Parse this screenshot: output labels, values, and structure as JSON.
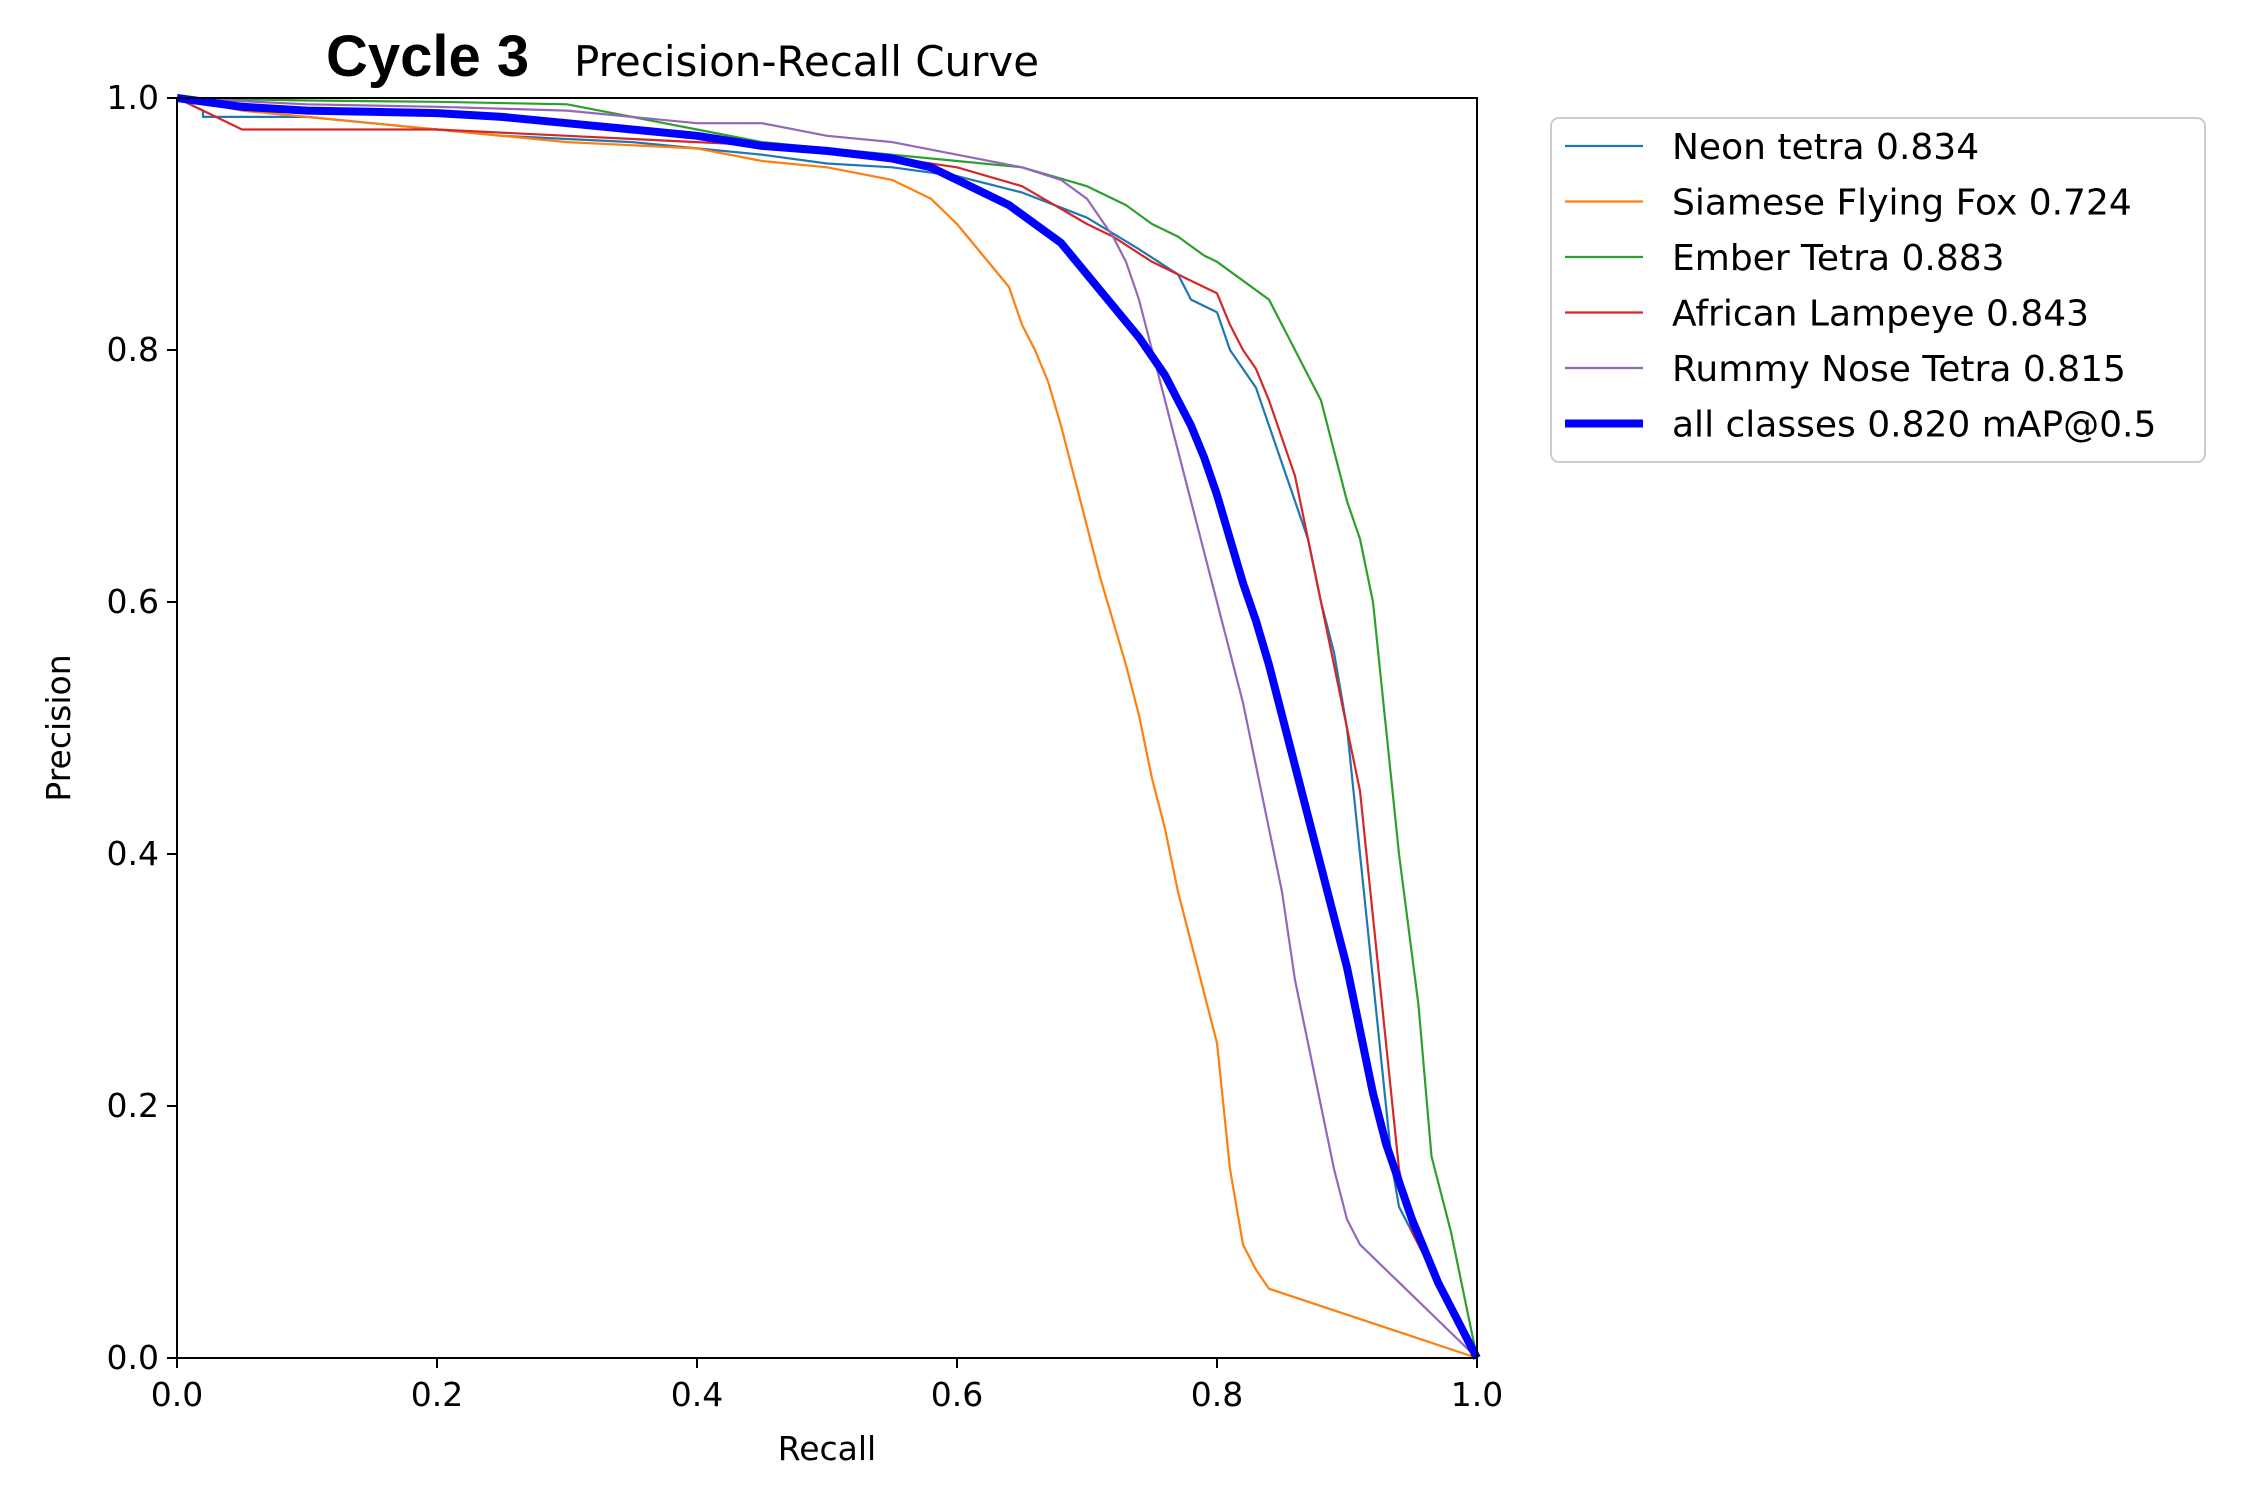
{
  "chart_data": {
    "type": "line",
    "title": "Cycle 3",
    "subtitle": "Precision-Recall Curve",
    "xlabel": "Recall",
    "ylabel": "Precision",
    "xlim": [
      0,
      1
    ],
    "ylim": [
      0,
      1
    ],
    "x_ticks": [
      "0.0",
      "0.2",
      "0.4",
      "0.6",
      "0.8",
      "1.0"
    ],
    "y_ticks": [
      "0.0",
      "0.2",
      "0.4",
      "0.6",
      "0.8",
      "1.0"
    ],
    "grid": false,
    "legend_position": "outside-right-top",
    "series": [
      {
        "name": "Neon tetra 0.834",
        "color": "#1f77b4",
        "bold": false,
        "points": [
          [
            0,
            1.0
          ],
          [
            0.02,
            0.99
          ],
          [
            0.02,
            0.985
          ],
          [
            0.1,
            0.985
          ],
          [
            0.2,
            0.975
          ],
          [
            0.25,
            0.97
          ],
          [
            0.35,
            0.965
          ],
          [
            0.4,
            0.96
          ],
          [
            0.45,
            0.955
          ],
          [
            0.5,
            0.948
          ],
          [
            0.55,
            0.945
          ],
          [
            0.6,
            0.938
          ],
          [
            0.65,
            0.925
          ],
          [
            0.7,
            0.905
          ],
          [
            0.74,
            0.88
          ],
          [
            0.77,
            0.86
          ],
          [
            0.78,
            0.84
          ],
          [
            0.8,
            0.83
          ],
          [
            0.81,
            0.8
          ],
          [
            0.83,
            0.77
          ],
          [
            0.84,
            0.74
          ],
          [
            0.85,
            0.71
          ],
          [
            0.86,
            0.68
          ],
          [
            0.87,
            0.65
          ],
          [
            0.88,
            0.6
          ],
          [
            0.89,
            0.56
          ],
          [
            0.9,
            0.5
          ],
          [
            0.905,
            0.45
          ],
          [
            0.91,
            0.4
          ],
          [
            0.915,
            0.35
          ],
          [
            0.92,
            0.3
          ],
          [
            0.925,
            0.25
          ],
          [
            0.93,
            0.2
          ],
          [
            0.935,
            0.15
          ],
          [
            0.94,
            0.12
          ],
          [
            0.95,
            0.1
          ],
          [
            0.96,
            0.08
          ],
          [
            0.97,
            0.06
          ],
          [
            1.0,
            0.0
          ]
        ]
      },
      {
        "name": "Siamese Flying Fox 0.724",
        "color": "#ff7f0e",
        "bold": false,
        "points": [
          [
            0,
            1.0
          ],
          [
            0.05,
            0.99
          ],
          [
            0.1,
            0.985
          ],
          [
            0.2,
            0.975
          ],
          [
            0.3,
            0.965
          ],
          [
            0.4,
            0.96
          ],
          [
            0.45,
            0.95
          ],
          [
            0.5,
            0.945
          ],
          [
            0.55,
            0.935
          ],
          [
            0.58,
            0.92
          ],
          [
            0.6,
            0.9
          ],
          [
            0.62,
            0.875
          ],
          [
            0.64,
            0.85
          ],
          [
            0.65,
            0.82
          ],
          [
            0.66,
            0.8
          ],
          [
            0.67,
            0.775
          ],
          [
            0.68,
            0.74
          ],
          [
            0.69,
            0.7
          ],
          [
            0.7,
            0.66
          ],
          [
            0.71,
            0.62
          ],
          [
            0.72,
            0.585
          ],
          [
            0.73,
            0.55
          ],
          [
            0.74,
            0.51
          ],
          [
            0.75,
            0.46
          ],
          [
            0.76,
            0.42
          ],
          [
            0.77,
            0.37
          ],
          [
            0.78,
            0.33
          ],
          [
            0.79,
            0.29
          ],
          [
            0.8,
            0.25
          ],
          [
            0.805,
            0.2
          ],
          [
            0.81,
            0.15
          ],
          [
            0.815,
            0.12
          ],
          [
            0.82,
            0.09
          ],
          [
            0.83,
            0.07
          ],
          [
            0.84,
            0.055
          ],
          [
            1.0,
            0.0
          ]
        ]
      },
      {
        "name": "Ember Tetra 0.883",
        "color": "#2ca02c",
        "bold": false,
        "points": [
          [
            0,
            1.0
          ],
          [
            0.1,
            0.998
          ],
          [
            0.2,
            0.997
          ],
          [
            0.3,
            0.995
          ],
          [
            0.4,
            0.975
          ],
          [
            0.45,
            0.965
          ],
          [
            0.5,
            0.96
          ],
          [
            0.55,
            0.955
          ],
          [
            0.6,
            0.95
          ],
          [
            0.65,
            0.945
          ],
          [
            0.7,
            0.93
          ],
          [
            0.73,
            0.915
          ],
          [
            0.75,
            0.9
          ],
          [
            0.77,
            0.89
          ],
          [
            0.79,
            0.875
          ],
          [
            0.8,
            0.87
          ],
          [
            0.82,
            0.855
          ],
          [
            0.84,
            0.84
          ],
          [
            0.85,
            0.82
          ],
          [
            0.86,
            0.8
          ],
          [
            0.87,
            0.78
          ],
          [
            0.88,
            0.76
          ],
          [
            0.89,
            0.72
          ],
          [
            0.9,
            0.68
          ],
          [
            0.91,
            0.65
          ],
          [
            0.92,
            0.6
          ],
          [
            0.925,
            0.55
          ],
          [
            0.93,
            0.5
          ],
          [
            0.935,
            0.45
          ],
          [
            0.94,
            0.4
          ],
          [
            0.945,
            0.36
          ],
          [
            0.95,
            0.32
          ],
          [
            0.955,
            0.28
          ],
          [
            0.96,
            0.22
          ],
          [
            0.965,
            0.16
          ],
          [
            0.98,
            0.1
          ],
          [
            1.0,
            0.0
          ]
        ]
      },
      {
        "name": "African Lampeye 0.843",
        "color": "#d62728",
        "bold": false,
        "points": [
          [
            0,
            1.0
          ],
          [
            0.05,
            0.975
          ],
          [
            0.1,
            0.975
          ],
          [
            0.2,
            0.975
          ],
          [
            0.3,
            0.97
          ],
          [
            0.4,
            0.965
          ],
          [
            0.5,
            0.96
          ],
          [
            0.6,
            0.945
          ],
          [
            0.65,
            0.93
          ],
          [
            0.7,
            0.9
          ],
          [
            0.72,
            0.89
          ],
          [
            0.75,
            0.87
          ],
          [
            0.78,
            0.855
          ],
          [
            0.8,
            0.845
          ],
          [
            0.81,
            0.82
          ],
          [
            0.82,
            0.8
          ],
          [
            0.83,
            0.785
          ],
          [
            0.84,
            0.76
          ],
          [
            0.85,
            0.73
          ],
          [
            0.86,
            0.7
          ],
          [
            0.87,
            0.65
          ],
          [
            0.88,
            0.6
          ],
          [
            0.89,
            0.55
          ],
          [
            0.9,
            0.5
          ],
          [
            0.91,
            0.45
          ],
          [
            0.915,
            0.4
          ],
          [
            0.92,
            0.35
          ],
          [
            0.925,
            0.3
          ],
          [
            0.93,
            0.25
          ],
          [
            0.935,
            0.2
          ],
          [
            0.94,
            0.15
          ],
          [
            0.95,
            0.1
          ],
          [
            0.97,
            0.06
          ],
          [
            1.0,
            0.0
          ]
        ]
      },
      {
        "name": "Rummy Nose Tetra 0.815",
        "color": "#9467bd",
        "bold": false,
        "points": [
          [
            0,
            1.0
          ],
          [
            0.1,
            0.995
          ],
          [
            0.2,
            0.993
          ],
          [
            0.3,
            0.99
          ],
          [
            0.35,
            0.985
          ],
          [
            0.4,
            0.98
          ],
          [
            0.45,
            0.98
          ],
          [
            0.5,
            0.97
          ],
          [
            0.55,
            0.965
          ],
          [
            0.6,
            0.955
          ],
          [
            0.65,
            0.945
          ],
          [
            0.68,
            0.935
          ],
          [
            0.7,
            0.92
          ],
          [
            0.71,
            0.905
          ],
          [
            0.72,
            0.89
          ],
          [
            0.73,
            0.87
          ],
          [
            0.74,
            0.84
          ],
          [
            0.75,
            0.8
          ],
          [
            0.76,
            0.76
          ],
          [
            0.77,
            0.72
          ],
          [
            0.78,
            0.68
          ],
          [
            0.79,
            0.64
          ],
          [
            0.8,
            0.6
          ],
          [
            0.81,
            0.56
          ],
          [
            0.82,
            0.52
          ],
          [
            0.83,
            0.47
          ],
          [
            0.84,
            0.42
          ],
          [
            0.85,
            0.37
          ],
          [
            0.86,
            0.3
          ],
          [
            0.87,
            0.25
          ],
          [
            0.88,
            0.2
          ],
          [
            0.89,
            0.15
          ],
          [
            0.9,
            0.11
          ],
          [
            0.91,
            0.09
          ],
          [
            1.0,
            0.0
          ]
        ]
      },
      {
        "name": "all classes 0.820 mAP@0.5",
        "color": "#0000ff",
        "bold": true,
        "points": [
          [
            0,
            1.0
          ],
          [
            0.05,
            0.993
          ],
          [
            0.1,
            0.99
          ],
          [
            0.2,
            0.988
          ],
          [
            0.25,
            0.985
          ],
          [
            0.3,
            0.98
          ],
          [
            0.35,
            0.975
          ],
          [
            0.4,
            0.97
          ],
          [
            0.45,
            0.962
          ],
          [
            0.5,
            0.958
          ],
          [
            0.55,
            0.952
          ],
          [
            0.58,
            0.945
          ],
          [
            0.6,
            0.935
          ],
          [
            0.62,
            0.925
          ],
          [
            0.64,
            0.915
          ],
          [
            0.66,
            0.9
          ],
          [
            0.68,
            0.885
          ],
          [
            0.7,
            0.86
          ],
          [
            0.72,
            0.835
          ],
          [
            0.74,
            0.81
          ],
          [
            0.76,
            0.78
          ],
          [
            0.77,
            0.76
          ],
          [
            0.78,
            0.74
          ],
          [
            0.79,
            0.715
          ],
          [
            0.8,
            0.685
          ],
          [
            0.81,
            0.65
          ],
          [
            0.82,
            0.615
          ],
          [
            0.83,
            0.585
          ],
          [
            0.84,
            0.55
          ],
          [
            0.85,
            0.51
          ],
          [
            0.86,
            0.47
          ],
          [
            0.87,
            0.43
          ],
          [
            0.88,
            0.39
          ],
          [
            0.89,
            0.35
          ],
          [
            0.9,
            0.31
          ],
          [
            0.91,
            0.26
          ],
          [
            0.92,
            0.21
          ],
          [
            0.93,
            0.17
          ],
          [
            0.94,
            0.14
          ],
          [
            0.95,
            0.11
          ],
          [
            0.96,
            0.085
          ],
          [
            0.97,
            0.06
          ],
          [
            0.98,
            0.04
          ],
          [
            0.99,
            0.02
          ],
          [
            1.0,
            0.0
          ]
        ]
      }
    ]
  }
}
